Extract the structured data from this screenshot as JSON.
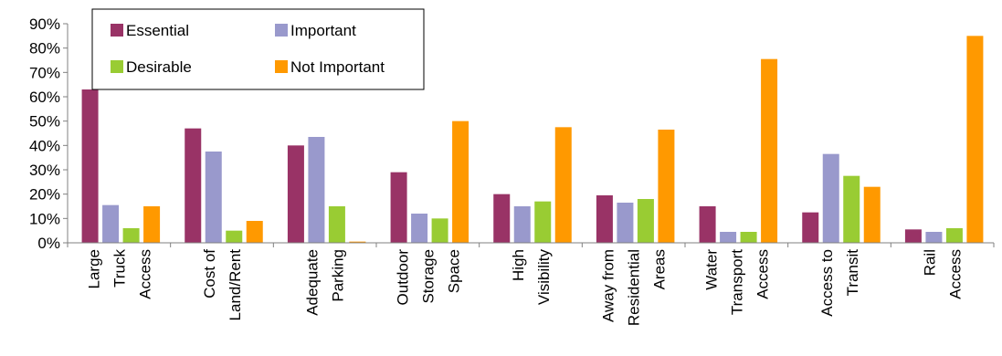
{
  "chart_data": {
    "type": "bar",
    "title": "",
    "xlabel": "",
    "ylabel": "",
    "ylim": [
      0,
      90
    ],
    "y_ticks": [
      "0%",
      "10%",
      "20%",
      "30%",
      "40%",
      "50%",
      "60%",
      "70%",
      "80%",
      "90%"
    ],
    "grid": false,
    "legend_position": "top-left",
    "categories": [
      [
        "Large",
        "Truck",
        "Access"
      ],
      [
        "Cost of",
        "Land/Rent"
      ],
      [
        "Adequate",
        "Parking"
      ],
      [
        "Outdoor",
        "Storage",
        "Space"
      ],
      [
        "High",
        "Visibility"
      ],
      [
        "Away from",
        "Residential",
        "Areas"
      ],
      [
        "Water",
        "Transport",
        "Access"
      ],
      [
        "Access to",
        "Transit"
      ],
      [
        "Rail",
        "Access"
      ]
    ],
    "series": [
      {
        "name": "Essential",
        "color": "#993366",
        "values": [
          63,
          47,
          40,
          29,
          20,
          19.5,
          15,
          12.5,
          5.5
        ]
      },
      {
        "name": "Important",
        "color": "#9999CC",
        "values": [
          15.5,
          37.5,
          43.5,
          12,
          15,
          16.5,
          4.5,
          36.5,
          4.5
        ]
      },
      {
        "name": "Desirable",
        "color": "#99CC33",
        "values": [
          6,
          5,
          15,
          10,
          17,
          18,
          4.5,
          27.5,
          6
        ]
      },
      {
        "name": "Not Important",
        "color": "#FF9900",
        "values": [
          15,
          9,
          0.5,
          50,
          47.5,
          46.5,
          75.5,
          23,
          85
        ]
      }
    ]
  }
}
